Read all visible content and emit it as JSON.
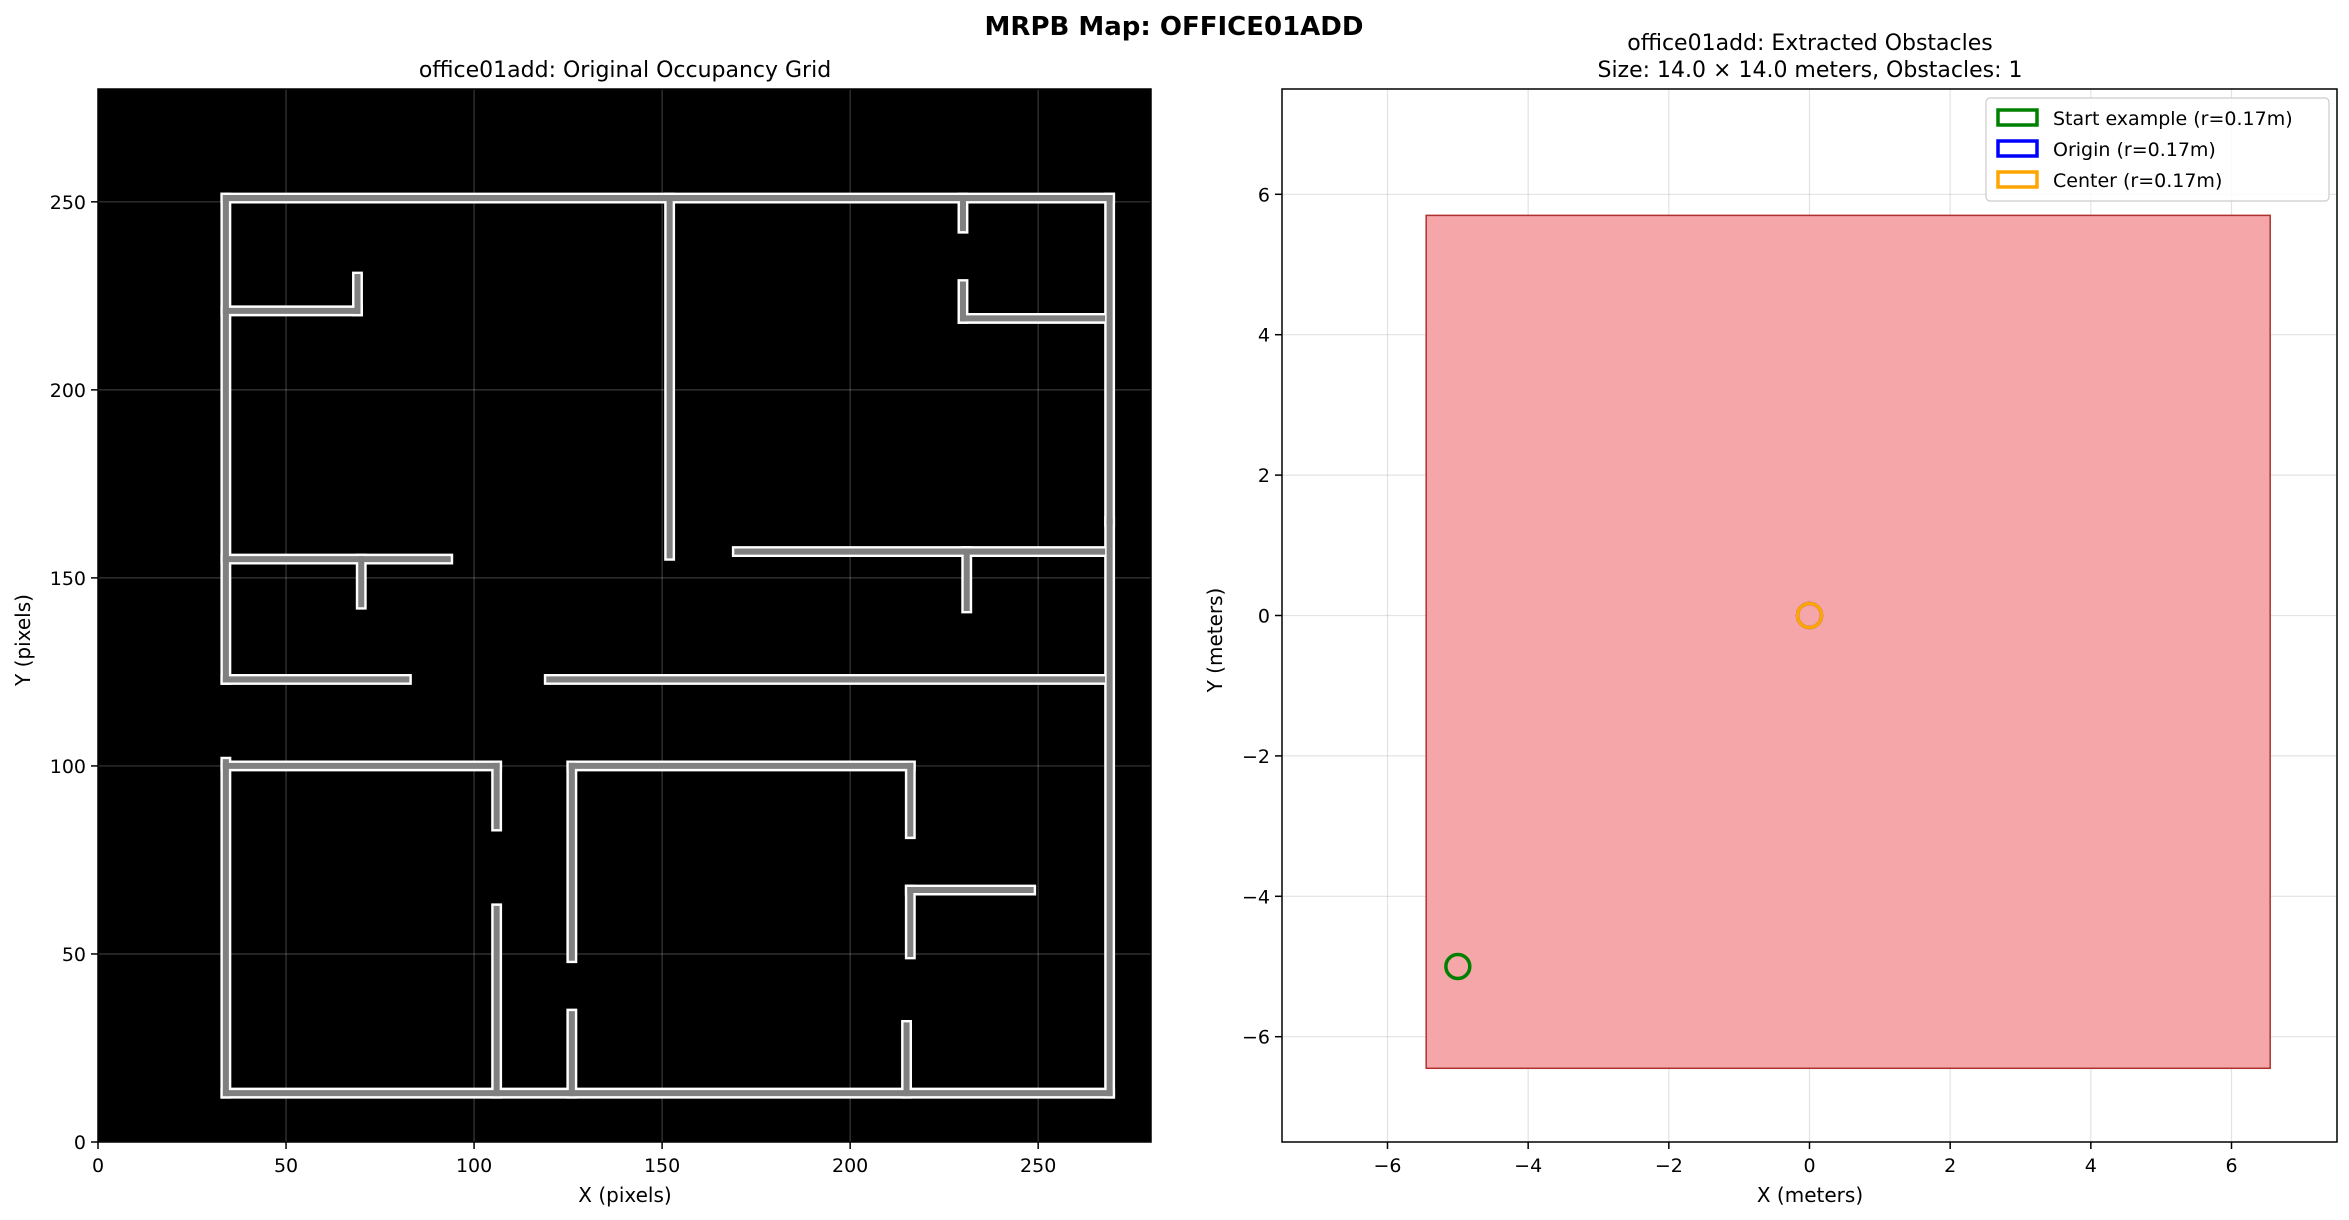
{
  "figure": {
    "suptitle": "MRPB Map: OFFICE01ADD"
  },
  "chart_data": [
    {
      "type": "heatmap",
      "title": "office01add: Original Occupancy Grid",
      "xlabel": "X (pixels)",
      "ylabel": "Y (pixels)",
      "xlim": [
        0,
        280
      ],
      "ylim": [
        0,
        280
      ],
      "xticks": [
        0,
        50,
        100,
        150,
        200,
        250
      ],
      "yticks": [
        0,
        50,
        100,
        150,
        200,
        250
      ],
      "grid": true,
      "background_color": "#000000",
      "wall_color": "#808080",
      "wall_outline_color": "#ffffff",
      "walls": [
        {
          "x": [
            34,
            269
          ],
          "y": [
            251,
            251
          ]
        },
        {
          "x": [
            269,
            269
          ],
          "y": [
            251,
            165
          ]
        },
        {
          "x": [
            269,
            269
          ],
          "y": [
            165,
            13
          ]
        },
        {
          "x": [
            269,
            34
          ],
          "y": [
            13,
            13
          ]
        },
        {
          "x": [
            34,
            34
          ],
          "y": [
            13,
            101
          ]
        },
        {
          "x": [
            34,
            34
          ],
          "y": [
            123,
            251
          ]
        },
        {
          "x": [
            34,
            69
          ],
          "y": [
            221,
            221
          ]
        },
        {
          "x": [
            69,
            69
          ],
          "y": [
            221,
            230
          ]
        },
        {
          "x": [
            34,
            93
          ],
          "y": [
            155,
            155
          ]
        },
        {
          "x": [
            70,
            70
          ],
          "y": [
            155,
            143
          ]
        },
        {
          "x": [
            34,
            82
          ],
          "y": [
            123,
            123
          ]
        },
        {
          "x": [
            152,
            152
          ],
          "y": [
            251,
            156
          ]
        },
        {
          "x": [
            230,
            230
          ],
          "y": [
            251,
            243
          ]
        },
        {
          "x": [
            230,
            230
          ],
          "y": [
            228,
            219
          ]
        },
        {
          "x": [
            230,
            267
          ],
          "y": [
            219,
            219
          ]
        },
        {
          "x": [
            170,
            267
          ],
          "y": [
            157,
            157
          ]
        },
        {
          "x": [
            231,
            231
          ],
          "y": [
            157,
            142
          ]
        },
        {
          "x": [
            120,
            267
          ],
          "y": [
            123,
            123
          ]
        },
        {
          "x": [
            34,
            106
          ],
          "y": [
            100,
            100
          ]
        },
        {
          "x": [
            106,
            106
          ],
          "y": [
            100,
            84
          ]
        },
        {
          "x": [
            126,
            216
          ],
          "y": [
            100,
            100
          ]
        },
        {
          "x": [
            126,
            126
          ],
          "y": [
            100,
            49
          ]
        },
        {
          "x": [
            216,
            216
          ],
          "y": [
            100,
            82
          ]
        },
        {
          "x": [
            216,
            216
          ],
          "y": [
            67,
            50
          ]
        },
        {
          "x": [
            216,
            248
          ],
          "y": [
            67,
            67
          ]
        },
        {
          "x": [
            106,
            106
          ],
          "y": [
            13,
            62
          ]
        },
        {
          "x": [
            126,
            126
          ],
          "y": [
            13,
            34
          ]
        },
        {
          "x": [
            215,
            215
          ],
          "y": [
            13,
            31
          ]
        }
      ]
    },
    {
      "type": "scatter",
      "title": "office01add: Extracted Obstacles",
      "subtitle": "Size: 14.0 × 14.0 meters, Obstacles: 1",
      "xlabel": "X (meters)",
      "ylabel": "Y (meters)",
      "xlim": [
        -7.5,
        7.5
      ],
      "ylim": [
        -7.5,
        7.5
      ],
      "xticks": [
        -6,
        -4,
        -2,
        0,
        2,
        4,
        6
      ],
      "yticks": [
        -6,
        -4,
        -2,
        0,
        2,
        4,
        6
      ],
      "grid": true,
      "legend_position": "top-right",
      "obstacles": [
        {
          "x": [
            -5.45,
            6.55
          ],
          "y": [
            -6.45,
            5.7
          ],
          "fill": "#f4a6a8",
          "edge": "#b03030"
        }
      ],
      "series": [
        {
          "name": "Start example (r=0.17m)",
          "x": -5.0,
          "y": -5.0,
          "r": 0.17,
          "color": "#008000"
        },
        {
          "name": "Origin (r=0.17m)",
          "x": 0.0,
          "y": 0.0,
          "r": 0.17,
          "color": "#0000ff"
        },
        {
          "name": "Center (r=0.17m)",
          "x": 0.0,
          "y": 0.0,
          "r": 0.17,
          "color": "#ffa500"
        }
      ]
    }
  ]
}
